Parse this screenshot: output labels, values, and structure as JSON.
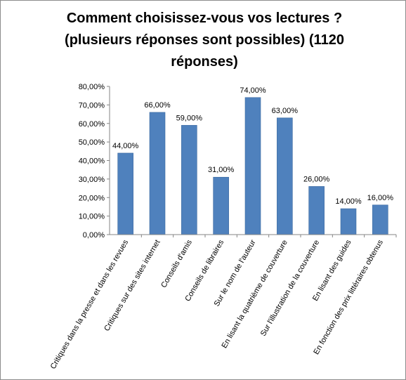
{
  "chart_data": {
    "type": "bar",
    "title_lines": [
      "Comment choisissez-vous vos lectures ?",
      "(plusieurs réponses sont possibles) (1120",
      "réponses)"
    ],
    "categories": [
      "Critiques dans la presse et dans les revues",
      "Critiques sur des sites internet",
      "Conseils d'amis",
      "Conseils de libraires",
      "Sur le nom de l'auteur",
      "En lisant la quatrième de couverture",
      "Sur l'illustration de la couverture",
      "En lisant des guides",
      "En fonction des prix littéraires obtenus"
    ],
    "values": [
      44,
      66,
      59,
      31,
      74,
      63,
      26,
      14,
      16
    ],
    "value_labels": [
      "44,00%",
      "66,00%",
      "59,00%",
      "31,00%",
      "74,00%",
      "63,00%",
      "26,00%",
      "14,00%",
      "16,00%"
    ],
    "ylim": [
      0,
      80
    ],
    "y_ticks": [
      "0,00%",
      "10,00%",
      "20,00%",
      "30,00%",
      "40,00%",
      "50,00%",
      "60,00%",
      "70,00%",
      "80,00%"
    ],
    "grid": false,
    "legend": "none",
    "bar_color": "#4f81bd",
    "bar_edge_color": "#3c6aa0",
    "axis_color": "#868686"
  }
}
